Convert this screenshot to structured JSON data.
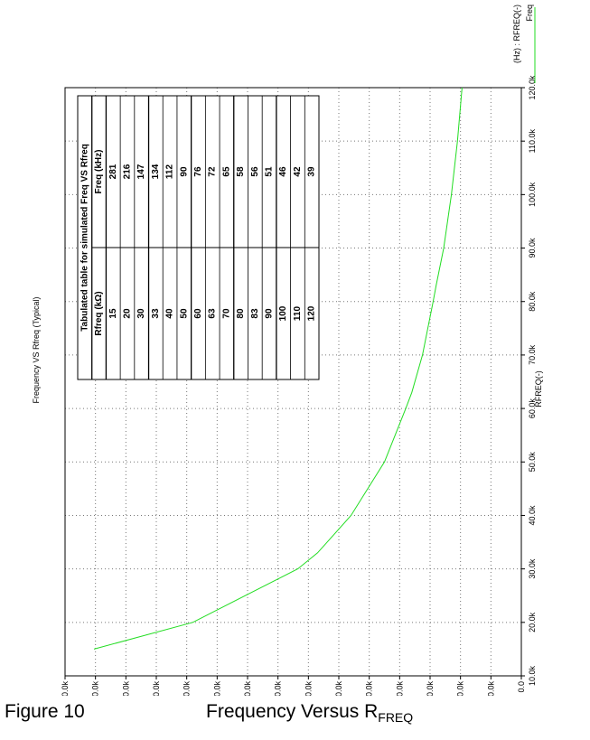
{
  "chart_data": {
    "type": "line",
    "title": "Frequency VS Rfreq (Typical)",
    "xlabel": "RFREQ(-)",
    "ylabel": "",
    "orientation": "rotated-90",
    "xlim": [
      10000,
      120000
    ],
    "ylim": [
      0,
      300000
    ],
    "x_ticks": [
      10000,
      20000,
      30000,
      40000,
      50000,
      60000,
      70000,
      80000,
      90000,
      100000,
      110000,
      120000
    ],
    "x_tick_labels": [
      "10.0k",
      "20.0k",
      "30.0k",
      "40.0k",
      "50.0k",
      "60.0k",
      "70.0k",
      "80.0k",
      "90.0k",
      "100.0k",
      "110.0k",
      "120.0k"
    ],
    "y_ticks": [
      0,
      20000,
      40000,
      60000,
      80000,
      100000,
      120000,
      140000,
      160000,
      180000,
      200000,
      220000,
      240000,
      260000,
      280000,
      300000
    ],
    "y_tick_labels": [
      "0.0",
      "20.0k",
      "40.0k",
      "60.0k",
      "80.0k",
      "100.0k",
      "120.0k",
      "140.0k",
      "160.0k",
      "180.0k",
      "200.0k",
      "220.0k",
      "240.0k",
      "260.0k",
      "280.0k",
      "300.0k"
    ],
    "grid": true,
    "legend_position": "top-right",
    "legend_header": "(Hz) : RFREQ(-)",
    "series": [
      {
        "name": "Freq",
        "color": "#22dd22",
        "x": [
          15000,
          20000,
          30000,
          33000,
          40000,
          50000,
          60000,
          63000,
          70000,
          80000,
          83000,
          90000,
          100000,
          110000,
          120000
        ],
        "y": [
          281000,
          216000,
          147000,
          134000,
          112000,
          90000,
          76000,
          72000,
          65000,
          58000,
          56000,
          51000,
          46000,
          42000,
          39000
        ]
      }
    ],
    "table": {
      "title": "Tabulated table for simulated Freq VS Rfreq",
      "headers": [
        "Rfreq (kΩ)",
        "Freq (kHz)"
      ],
      "rows": [
        [
          "15",
          "281"
        ],
        [
          "20",
          "216"
        ],
        [
          "30",
          "147"
        ],
        [
          "33",
          "134"
        ],
        [
          "40",
          "112"
        ],
        [
          "50",
          "90"
        ],
        [
          "60",
          "76"
        ],
        [
          "63",
          "72"
        ],
        [
          "70",
          "65"
        ],
        [
          "80",
          "58"
        ],
        [
          "83",
          "56"
        ],
        [
          "90",
          "51"
        ],
        [
          "100",
          "46"
        ],
        [
          "110",
          "42"
        ],
        [
          "120",
          "39"
        ]
      ]
    }
  },
  "caption": {
    "figure_number": "Figure 10",
    "title_main": "Frequency Versus R",
    "title_sub": "FREQ"
  }
}
